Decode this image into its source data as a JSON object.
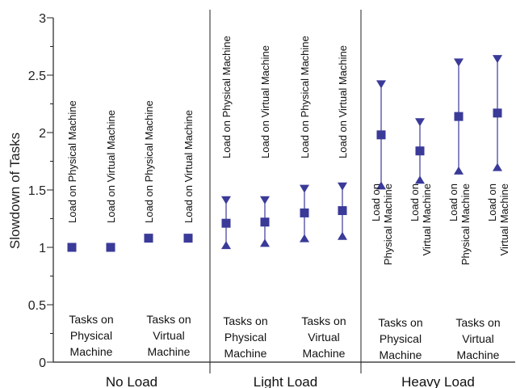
{
  "chart_data": {
    "type": "scatter",
    "ylabel": "Slowdown of Tasks",
    "xlabel": "",
    "ylim": [
      0,
      3
    ],
    "yticks": [
      "0",
      "0.5",
      "1",
      "1.5",
      "2",
      "2.5",
      "3"
    ],
    "grid": false,
    "legend": "none",
    "marker_color": "#3a3a99",
    "groups": [
      {
        "name": "No Load",
        "task_labels": [
          "Tasks on Physical Machine",
          "Tasks on Virtual Machine"
        ]
      },
      {
        "name": "Light Load",
        "task_labels": [
          "Tasks on Physical Machine",
          "Tasks on Virtual Machine"
        ]
      },
      {
        "name": "Heavy Load",
        "task_labels": [
          "Tasks on Physical Machine",
          "Tasks on Virtual Machine"
        ]
      }
    ],
    "points": [
      {
        "group": "No Load",
        "task": "Tasks on Physical Machine",
        "load": "Load on Physical Machine",
        "mean": 1.0,
        "min": 0.98,
        "max": 1.02
      },
      {
        "group": "No Load",
        "task": "Tasks on Physical Machine",
        "load": "Load on Virtual Machine",
        "mean": 1.0,
        "min": 0.98,
        "max": 1.02
      },
      {
        "group": "No Load",
        "task": "Tasks on Virtual Machine",
        "load": "Load on Physical Machine",
        "mean": 1.08,
        "min": 1.06,
        "max": 1.1
      },
      {
        "group": "No Load",
        "task": "Tasks on Virtual Machine",
        "load": "Load on Virtual Machine",
        "mean": 1.08,
        "min": 1.06,
        "max": 1.1
      },
      {
        "group": "Light Load",
        "task": "Tasks on Physical Machine",
        "load": "Load on Physical Machine",
        "mean": 1.21,
        "min": 1.02,
        "max": 1.41
      },
      {
        "group": "Light Load",
        "task": "Tasks on Physical Machine",
        "load": "Load on Virtual Machine",
        "mean": 1.22,
        "min": 1.04,
        "max": 1.41
      },
      {
        "group": "Light Load",
        "task": "Tasks on Virtual Machine",
        "load": "Load on Physical Machine",
        "mean": 1.3,
        "min": 1.08,
        "max": 1.51
      },
      {
        "group": "Light Load",
        "task": "Tasks on Virtual Machine",
        "load": "Load on Virtual Machine",
        "mean": 1.32,
        "min": 1.1,
        "max": 1.53
      },
      {
        "group": "Heavy Load",
        "task": "Tasks on Physical Machine",
        "load": "Load on Physical Machine",
        "mean": 1.98,
        "min": 1.54,
        "max": 2.42
      },
      {
        "group": "Heavy Load",
        "task": "Tasks on Physical Machine",
        "load": "Load on Virtual Machine",
        "mean": 1.84,
        "min": 1.59,
        "max": 2.09
      },
      {
        "group": "Heavy Load",
        "task": "Tasks on Virtual Machine",
        "load": "Load on Physical Machine",
        "mean": 2.14,
        "min": 1.67,
        "max": 2.61
      },
      {
        "group": "Heavy Load",
        "task": "Tasks on Virtual Machine",
        "load": "Load on Virtual Machine",
        "mean": 2.17,
        "min": 1.7,
        "max": 2.64
      }
    ]
  }
}
